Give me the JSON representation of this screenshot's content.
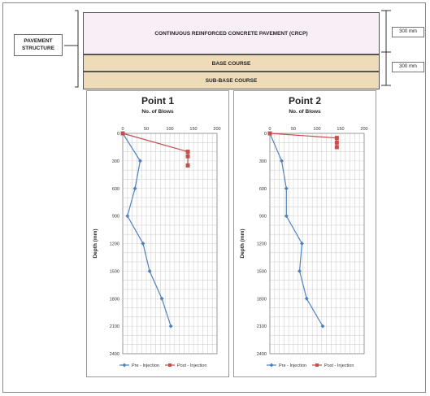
{
  "pavement": {
    "structure_label": "PAVEMENT STRUCTURE",
    "layers": {
      "crcp": "CONTINUOUS REINFORCED CONCRETE PAVEMENT (CRCP)",
      "base": "BASE COURSE",
      "subbase": "SUB-BASE COURSE"
    },
    "dims": {
      "crcp": "300 mm",
      "base": "300 mm"
    },
    "colors": {
      "crcp": "#f8eff6",
      "base": "#eedcb8"
    }
  },
  "chart_data": [
    {
      "type": "line",
      "title": "Point 1",
      "xlabel": "No. of Blows",
      "ylabel": "Depth (mm)",
      "x_ticks": [
        "0",
        "50",
        "100",
        "150",
        "200"
      ],
      "y_ticks": [
        "0",
        "300",
        "600",
        "900",
        "1200",
        "1500",
        "1800",
        "2100",
        "2400"
      ],
      "xlim": [
        0,
        200
      ],
      "ylim": [
        0,
        2400
      ],
      "y_inverted": true,
      "x_axis_position": "top",
      "grid": true,
      "legend_position": "bottom",
      "series": [
        {
          "name": "Pre - Injection",
          "color": "#4f81bd",
          "marker": "diamond",
          "x": [
            0,
            37,
            26,
            10,
            43,
            57,
            83,
            102
          ],
          "y": [
            0,
            300,
            600,
            900,
            1200,
            1500,
            1800,
            2100
          ]
        },
        {
          "name": "Post - Injection",
          "color": "#c0504d",
          "marker": "square",
          "x": [
            0,
            138,
            138,
            138
          ],
          "y": [
            0,
            200,
            250,
            350
          ]
        }
      ]
    },
    {
      "type": "line",
      "title": "Point 2",
      "xlabel": "No. of Blows",
      "ylabel": "Depth (mm)",
      "x_ticks": [
        "0",
        "50",
        "100",
        "150",
        "200"
      ],
      "y_ticks": [
        "0",
        "300",
        "600",
        "900",
        "1200",
        "1500",
        "1800",
        "2100",
        "2400"
      ],
      "xlim": [
        0,
        200
      ],
      "ylim": [
        0,
        2400
      ],
      "y_inverted": true,
      "x_axis_position": "top",
      "grid": true,
      "legend_position": "bottom",
      "series": [
        {
          "name": "Pre - Injection",
          "color": "#4f81bd",
          "marker": "diamond",
          "x": [
            0,
            25,
            35,
            35,
            68,
            63,
            78,
            112
          ],
          "y": [
            0,
            300,
            600,
            900,
            1200,
            1500,
            1800,
            2100
          ]
        },
        {
          "name": "Post - Injection",
          "color": "#c0504d",
          "marker": "square",
          "x": [
            0,
            142,
            142,
            142
          ],
          "y": [
            0,
            50,
            100,
            150
          ]
        }
      ]
    }
  ]
}
